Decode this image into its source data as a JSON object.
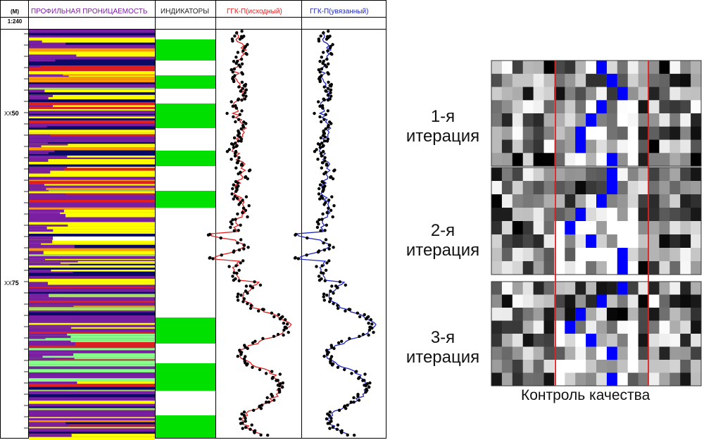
{
  "log_header": {
    "depth_unit": "(M)",
    "scale": "1:240",
    "columns": [
      {
        "label": "ПРОФИЛЬНАЯ ПРОНИЦАЕМОСТЬ",
        "color": "#7a1fa2"
      },
      {
        "label": "ИНДИКАТОРЫ",
        "color": "#222222"
      },
      {
        "label": "ГГК-П(исходный)",
        "color": "#e02020"
      },
      {
        "label": "ГГК-П(увязанный)",
        "color": "#1a24c0"
      }
    ]
  },
  "depth_marks": [
    {
      "prefix": "XX",
      "value": "50"
    },
    {
      "prefix": "XX",
      "value": "75"
    }
  ],
  "quality_control": {
    "title": "Контроль качества",
    "iterations": [
      {
        "line1": "1-я",
        "line2": "итерация"
      },
      {
        "line1": "2-я",
        "line2": "итерация"
      },
      {
        "line1": "3-я",
        "line2": "итерация"
      }
    ]
  },
  "colors": {
    "permeability_palette": [
      "#ffff00",
      "#7a1fa2",
      "#0a0a66",
      "#e02020",
      "#aadd66",
      "#ff9900",
      "#88ff88"
    ],
    "indicator_green": "#00e000",
    "original_curve": "#e02020",
    "matched_curve": "#1a24c0",
    "qc_highlight": "#0000ff",
    "qc_divider": "#e02020"
  }
}
